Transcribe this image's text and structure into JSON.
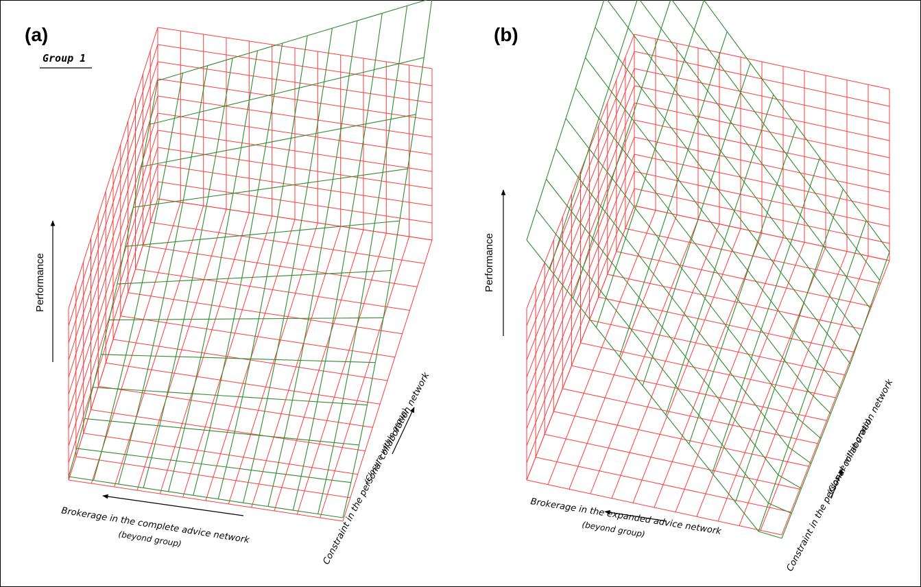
{
  "panel_a": {
    "tag": "(a)",
    "group_label": "Group 1",
    "z_label": "Performance",
    "x_label": "Brokerage in the complete advice network",
    "x_sublabel": "(beyond group)",
    "y_label": "Constraint in the personal collaboration network",
    "y_sublabel": "(Closure within group)"
  },
  "panel_b": {
    "tag": "(b)",
    "z_label": "Performance",
    "x_label": "Brokerage in the expanded advice network",
    "x_sublabel": "(beyond group)",
    "y_label": "Constraint in the personal collaboration network",
    "y_sublabel": "(Closure within group)"
  },
  "colors": {
    "axis_grid": "#ff3b3b",
    "surface_mesh": "#2e8b2e",
    "text": "#000000"
  }
}
